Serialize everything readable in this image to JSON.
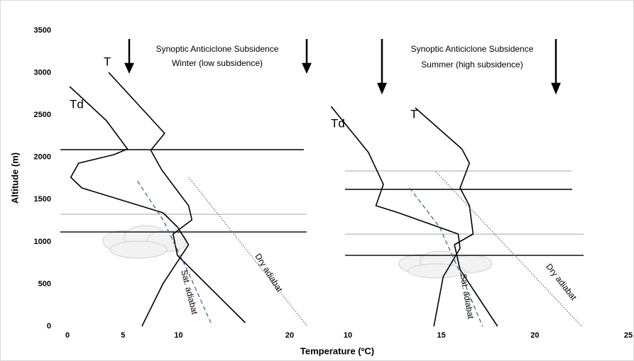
{
  "chart_data": [
    {
      "type": "line",
      "ylabel": "Altitude (m)",
      "xlabel": "Temperature (ºC)",
      "ylim": [
        0,
        3500
      ],
      "yticks": [
        0,
        500,
        1000,
        1500,
        2000,
        2500,
        3000,
        3500
      ],
      "xlim": [
        0,
        20
      ],
      "xticks": [
        0,
        5,
        10,
        20
      ],
      "annotations": [
        "Synoptic Anticiclone Subsidence",
        "Winter (low subsidence)",
        "Dry adiabat",
        "Sat. adiabat"
      ],
      "levels": [
        2090,
        1326,
        1116
      ],
      "series": [
        {
          "name": "T",
          "color": "#000000",
          "style": "solid",
          "x": [
            3.7,
            8.75,
            7.5,
            8.5,
            10.9,
            11.2,
            9.5,
            9.9,
            16.0
          ],
          "values": [
            3005,
            2283,
            2082,
            1847,
            1427,
            1259,
            1091,
            839,
            42
          ]
        },
        {
          "name": "Td",
          "color": "#000000",
          "style": "solid",
          "x": [
            0.2,
            3.5,
            5.4,
            4.2,
            1.0,
            0.3,
            1.3,
            8.6,
            9.9,
            10.9,
            8.6,
            6.7
          ],
          "values": [
            2837,
            2434,
            2098,
            2031,
            1930,
            1763,
            1637,
            1343,
            1175,
            965,
            504,
            0
          ]
        },
        {
          "color": "#2e5c9a",
          "style": "dashed",
          "x": [
            6.3,
            8.6,
            10.9,
            12.9
          ],
          "values": [
            1720,
            1259,
            630,
            42
          ]
        },
        {
          "color": "#666666",
          "style": "dotted",
          "x": [
            10.9,
            21.6
          ],
          "values": [
            1763,
            0
          ]
        }
      ]
    },
    {
      "type": "line",
      "ylim": [
        0,
        3500
      ],
      "xlim": [
        10,
        25
      ],
      "xticks": [
        10,
        15,
        20,
        25
      ],
      "annotations": [
        "Synoptic Anticiclone Subsidence",
        "Summer (high subsidence)",
        "Dry adiabat",
        "Sat. adiabat"
      ],
      "levels": [
        1838,
        1620,
        1091,
        839
      ],
      "series": [
        {
          "name": "T",
          "color": "#000000",
          "style": "solid",
          "x": [
            13.6,
            16.1,
            16.5,
            16.0,
            16.5,
            16.7,
            15.7,
            16.0,
            18.0
          ],
          "values": [
            2585,
            2098,
            1930,
            1637,
            1427,
            1091,
            965,
            671,
            0
          ]
        },
        {
          "name": "Td",
          "color": "#000000",
          "style": "solid",
          "x": [
            9.1,
            11.1,
            11.9,
            11.5,
            12.7,
            15.9,
            16.0,
            15.1,
            14.6
          ],
          "values": [
            2602,
            2056,
            1679,
            1427,
            1343,
            1091,
            923,
            587,
            0
          ]
        },
        {
          "color": "#2e5c9a",
          "style": "dashed",
          "x": [
            13.3,
            14.9,
            16.1,
            17.2
          ],
          "values": [
            1637,
            1175,
            587,
            0
          ]
        },
        {
          "color": "#666666",
          "style": "dotted",
          "x": [
            14.7,
            22.5
          ],
          "values": [
            1830,
            0
          ]
        }
      ]
    }
  ]
}
